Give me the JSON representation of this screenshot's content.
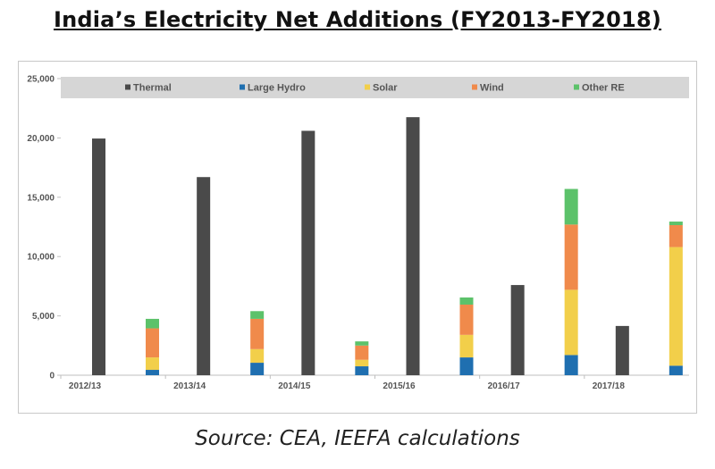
{
  "page": {
    "title": "India’s Electricity Net Additions (FY2013-FY2018)",
    "source": "Source: CEA, IEEFA calculations"
  },
  "chart_data": {
    "type": "bar",
    "categories": [
      "2012/13",
      "2013/14",
      "2014/15",
      "2015/16",
      "2016/17",
      "2017/18"
    ],
    "ylim": [
      0,
      25000
    ],
    "yticks": [
      0,
      5000,
      10000,
      15000,
      20000,
      25000
    ],
    "ytick_labels": [
      "0",
      "5,000",
      "10,000",
      "15,000",
      "20,000",
      "25,000"
    ],
    "grid": false,
    "legend_position": "top",
    "series": [
      {
        "name": "Thermal",
        "color": "#4a4a4a",
        "stack": "thermal",
        "values": [
          19950,
          16700,
          20600,
          21750,
          7600,
          4150
        ]
      },
      {
        "name": "Large Hydro",
        "color": "#1f6fb0",
        "stack": "renewables",
        "values": [
          450,
          1050,
          750,
          1500,
          1700,
          800
        ]
      },
      {
        "name": "Solar",
        "color": "#f2cf4a",
        "stack": "renewables",
        "values": [
          1050,
          1150,
          550,
          1900,
          5500,
          10000
        ]
      },
      {
        "name": "Wind",
        "color": "#f08a4b",
        "stack": "renewables",
        "values": [
          2450,
          2550,
          1200,
          2550,
          5500,
          1850
        ]
      },
      {
        "name": "Other RE",
        "color": "#5cc26a",
        "stack": "renewables",
        "values": [
          800,
          650,
          350,
          600,
          3000,
          300
        ]
      }
    ]
  }
}
